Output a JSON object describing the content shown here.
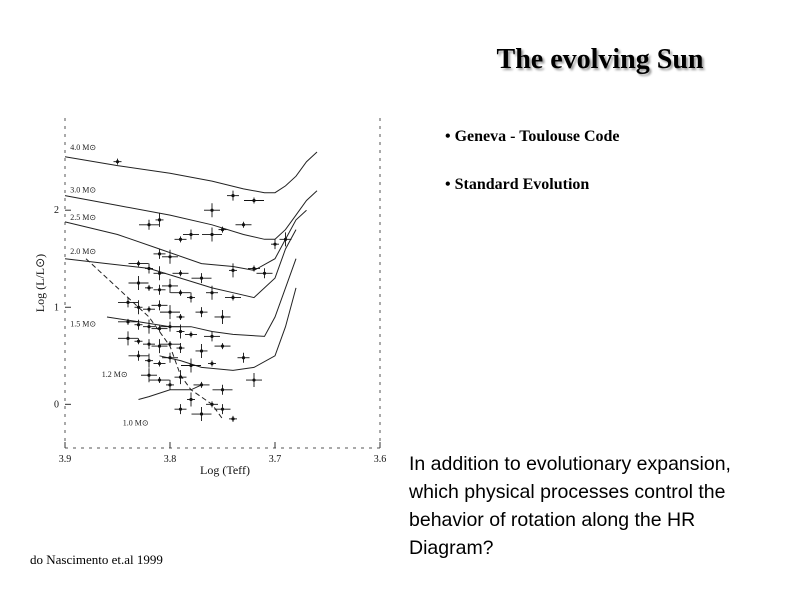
{
  "slide": {
    "title": "The evolving Sun",
    "bullets": [
      "• Geneva - Toulouse Code",
      "• Standard Evolution"
    ],
    "question": "In addition to evolutionary expansion, which physical processes control the behavior of rotation along the HR Diagram?",
    "caption": "do Nascimento et.al 1999"
  },
  "chart_data": {
    "type": "scatter",
    "xlabel": "Log (Teff)",
    "ylabel": "Log (L/L⊙)",
    "xlim": [
      3.9,
      3.6
    ],
    "ylim": [
      -0.45,
      2.95
    ],
    "x_ticks": [
      "3.9",
      "3.8",
      "3.7",
      "3.6"
    ],
    "y_ticks": [
      "0",
      "1",
      "2"
    ],
    "track_labels": [
      "4.0 M⊙",
      "3.0 M⊙",
      "2.5 M⊙",
      "2.0 M⊙",
      "1.5 M⊙",
      "1.2 M⊙",
      "1.0 M⊙"
    ],
    "tracks": [
      {
        "label_index": 0,
        "label_pos": [
          3.895,
          2.62
        ],
        "points": [
          [
            3.9,
            2.55
          ],
          [
            3.85,
            2.46
          ],
          [
            3.8,
            2.38
          ],
          [
            3.76,
            2.3
          ],
          [
            3.73,
            2.22
          ],
          [
            3.71,
            2.18
          ],
          [
            3.7,
            2.18
          ],
          [
            3.69,
            2.25
          ],
          [
            3.68,
            2.35
          ],
          [
            3.67,
            2.5
          ],
          [
            3.66,
            2.6
          ]
        ]
      },
      {
        "label_index": 1,
        "label_pos": [
          3.895,
          2.18
        ],
        "points": [
          [
            3.9,
            2.15
          ],
          [
            3.85,
            2.05
          ],
          [
            3.8,
            1.95
          ],
          [
            3.76,
            1.85
          ],
          [
            3.73,
            1.75
          ],
          [
            3.71,
            1.7
          ],
          [
            3.7,
            1.7
          ],
          [
            3.69,
            1.8
          ],
          [
            3.68,
            1.95
          ],
          [
            3.67,
            2.1
          ],
          [
            3.66,
            2.2
          ]
        ]
      },
      {
        "label_index": 2,
        "label_pos": [
          3.895,
          1.9
        ],
        "points": [
          [
            3.9,
            1.88
          ],
          [
            3.85,
            1.75
          ],
          [
            3.81,
            1.6
          ],
          [
            3.77,
            1.45
          ],
          [
            3.74,
            1.42
          ],
          [
            3.72,
            1.38
          ],
          [
            3.7,
            1.5
          ],
          [
            3.69,
            1.7
          ],
          [
            3.68,
            1.9
          ],
          [
            3.67,
            2.0
          ]
        ]
      },
      {
        "label_index": 3,
        "label_pos": [
          3.895,
          1.55
        ],
        "points": [
          [
            3.9,
            1.5
          ],
          [
            3.86,
            1.45
          ],
          [
            3.82,
            1.4
          ],
          [
            3.79,
            1.3
          ],
          [
            3.76,
            1.2
          ],
          [
            3.74,
            1.15
          ],
          [
            3.72,
            1.1
          ],
          [
            3.7,
            1.3
          ],
          [
            3.69,
            1.6
          ],
          [
            3.68,
            1.8
          ]
        ]
      },
      {
        "label_index": 4,
        "label_pos": [
          3.895,
          0.8
        ],
        "points": [
          [
            3.86,
            0.9
          ],
          [
            3.83,
            0.85
          ],
          [
            3.8,
            0.8
          ],
          [
            3.78,
            0.8
          ],
          [
            3.76,
            0.75
          ],
          [
            3.74,
            0.72
          ],
          [
            3.71,
            0.7
          ],
          [
            3.7,
            0.9
          ],
          [
            3.69,
            1.2
          ],
          [
            3.68,
            1.5
          ]
        ]
      },
      {
        "label_index": 5,
        "label_pos": [
          3.865,
          0.28
        ],
        "points": [
          [
            3.81,
            0.5
          ],
          [
            3.79,
            0.45
          ],
          [
            3.77,
            0.38
          ],
          [
            3.74,
            0.35
          ],
          [
            3.72,
            0.38
          ],
          [
            3.7,
            0.5
          ],
          [
            3.69,
            0.8
          ],
          [
            3.68,
            1.2
          ]
        ]
      },
      {
        "label_index": 6,
        "label_pos": [
          3.845,
          -0.22
        ],
        "points": [
          [
            3.83,
            0.05
          ],
          [
            3.82,
            0.08
          ],
          [
            3.8,
            0.15
          ],
          [
            3.78,
            0.15
          ],
          [
            3.77,
            0.2
          ]
        ]
      }
    ],
    "zams": [
      [
        3.88,
        1.5
      ],
      [
        3.86,
        1.3
      ],
      [
        3.84,
        1.1
      ],
      [
        3.82,
        0.9
      ],
      [
        3.8,
        0.6
      ],
      [
        3.79,
        0.3
      ],
      [
        3.78,
        0.15
      ],
      [
        3.76,
        0.0
      ],
      [
        3.75,
        -0.15
      ]
    ],
    "points": [
      [
        3.85,
        2.5
      ],
      [
        3.74,
        2.15
      ],
      [
        3.76,
        2.0
      ],
      [
        3.72,
        2.1
      ],
      [
        3.7,
        1.65
      ],
      [
        3.69,
        1.7
      ],
      [
        3.73,
        1.85
      ],
      [
        3.82,
        1.85
      ],
      [
        3.81,
        1.9
      ],
      [
        3.79,
        1.7
      ],
      [
        3.78,
        1.75
      ],
      [
        3.76,
        1.75
      ],
      [
        3.75,
        1.8
      ],
      [
        3.81,
        1.55
      ],
      [
        3.8,
        1.52
      ],
      [
        3.83,
        1.45
      ],
      [
        3.82,
        1.4
      ],
      [
        3.81,
        1.35
      ],
      [
        3.79,
        1.35
      ],
      [
        3.77,
        1.3
      ],
      [
        3.74,
        1.38
      ],
      [
        3.72,
        1.4
      ],
      [
        3.71,
        1.35
      ],
      [
        3.83,
        1.25
      ],
      [
        3.82,
        1.2
      ],
      [
        3.81,
        1.18
      ],
      [
        3.8,
        1.22
      ],
      [
        3.79,
        1.15
      ],
      [
        3.78,
        1.1
      ],
      [
        3.76,
        1.15
      ],
      [
        3.74,
        1.1
      ],
      [
        3.84,
        1.05
      ],
      [
        3.83,
        1.0
      ],
      [
        3.82,
        0.98
      ],
      [
        3.81,
        1.02
      ],
      [
        3.8,
        0.95
      ],
      [
        3.79,
        0.9
      ],
      [
        3.77,
        0.95
      ],
      [
        3.75,
        0.9
      ],
      [
        3.84,
        0.85
      ],
      [
        3.83,
        0.82
      ],
      [
        3.82,
        0.8
      ],
      [
        3.81,
        0.78
      ],
      [
        3.8,
        0.8
      ],
      [
        3.79,
        0.75
      ],
      [
        3.78,
        0.72
      ],
      [
        3.76,
        0.7
      ],
      [
        3.84,
        0.68
      ],
      [
        3.83,
        0.65
      ],
      [
        3.82,
        0.62
      ],
      [
        3.81,
        0.6
      ],
      [
        3.8,
        0.62
      ],
      [
        3.79,
        0.58
      ],
      [
        3.77,
        0.55
      ],
      [
        3.75,
        0.6
      ],
      [
        3.83,
        0.5
      ],
      [
        3.82,
        0.45
      ],
      [
        3.81,
        0.42
      ],
      [
        3.8,
        0.48
      ],
      [
        3.78,
        0.4
      ],
      [
        3.76,
        0.42
      ],
      [
        3.73,
        0.48
      ],
      [
        3.82,
        0.3
      ],
      [
        3.81,
        0.25
      ],
      [
        3.8,
        0.2
      ],
      [
        3.79,
        0.28
      ],
      [
        3.77,
        0.2
      ],
      [
        3.75,
        0.15
      ],
      [
        3.78,
        0.05
      ],
      [
        3.76,
        0.0
      ],
      [
        3.75,
        -0.05
      ],
      [
        3.77,
        -0.1
      ],
      [
        3.74,
        -0.15
      ],
      [
        3.79,
        -0.05
      ],
      [
        3.72,
        0.25
      ]
    ]
  }
}
